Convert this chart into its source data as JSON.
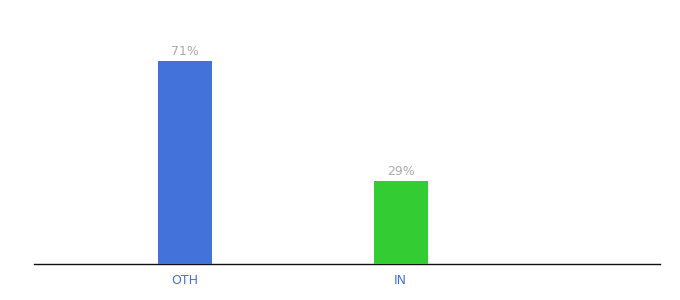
{
  "categories": [
    "OTH",
    "IN"
  ],
  "values": [
    71,
    29
  ],
  "bar_colors": [
    "#4472db",
    "#33cc33"
  ],
  "value_labels": [
    "71%",
    "29%"
  ],
  "background_color": "#ffffff",
  "label_color": "#aaaaaa",
  "label_fontsize": 9,
  "tick_fontsize": 9,
  "tick_color": "#4472db",
  "ylim": [
    0,
    85
  ],
  "bar_width": 0.25,
  "x_positions": [
    1,
    2
  ],
  "xlim": [
    0.3,
    3.2
  ]
}
